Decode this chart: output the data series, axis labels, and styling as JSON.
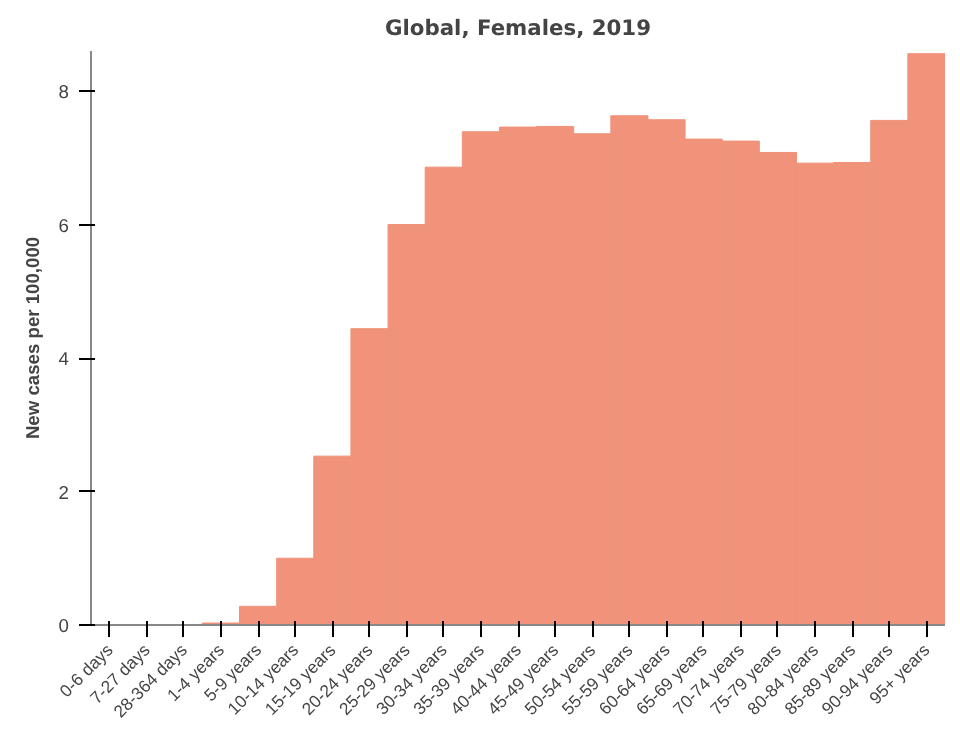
{
  "chart_data": {
    "type": "bar",
    "title": "Global, Females, 2019",
    "ylabel": "New cases per 100,000",
    "categories": [
      "0-6 days",
      "7-27 days",
      "28-364 days",
      "1-4 years",
      "5-9 years",
      "10-14 years",
      "15-19 years",
      "20-24 years",
      "25-29 years",
      "30-34 years",
      "35-39 years",
      "40-44 years",
      "45-49 years",
      "50-54 years",
      "55-59 years",
      "60-64 years",
      "65-69 years",
      "70-74 years",
      "75-79 years",
      "80-84 years",
      "85-89 years",
      "90-94 years",
      "95+ years"
    ],
    "values": [
      0,
      0,
      0,
      0.03,
      0.28,
      1.0,
      2.53,
      4.44,
      6.0,
      6.86,
      7.39,
      7.46,
      7.47,
      7.36,
      7.63,
      7.57,
      7.28,
      7.25,
      7.08,
      6.92,
      6.93,
      7.56,
      8.56
    ],
    "color": "#f0937a",
    "ylim": [
      0,
      8.6
    ],
    "yticks": [
      0,
      2,
      4,
      6,
      8
    ],
    "grid": false
  }
}
